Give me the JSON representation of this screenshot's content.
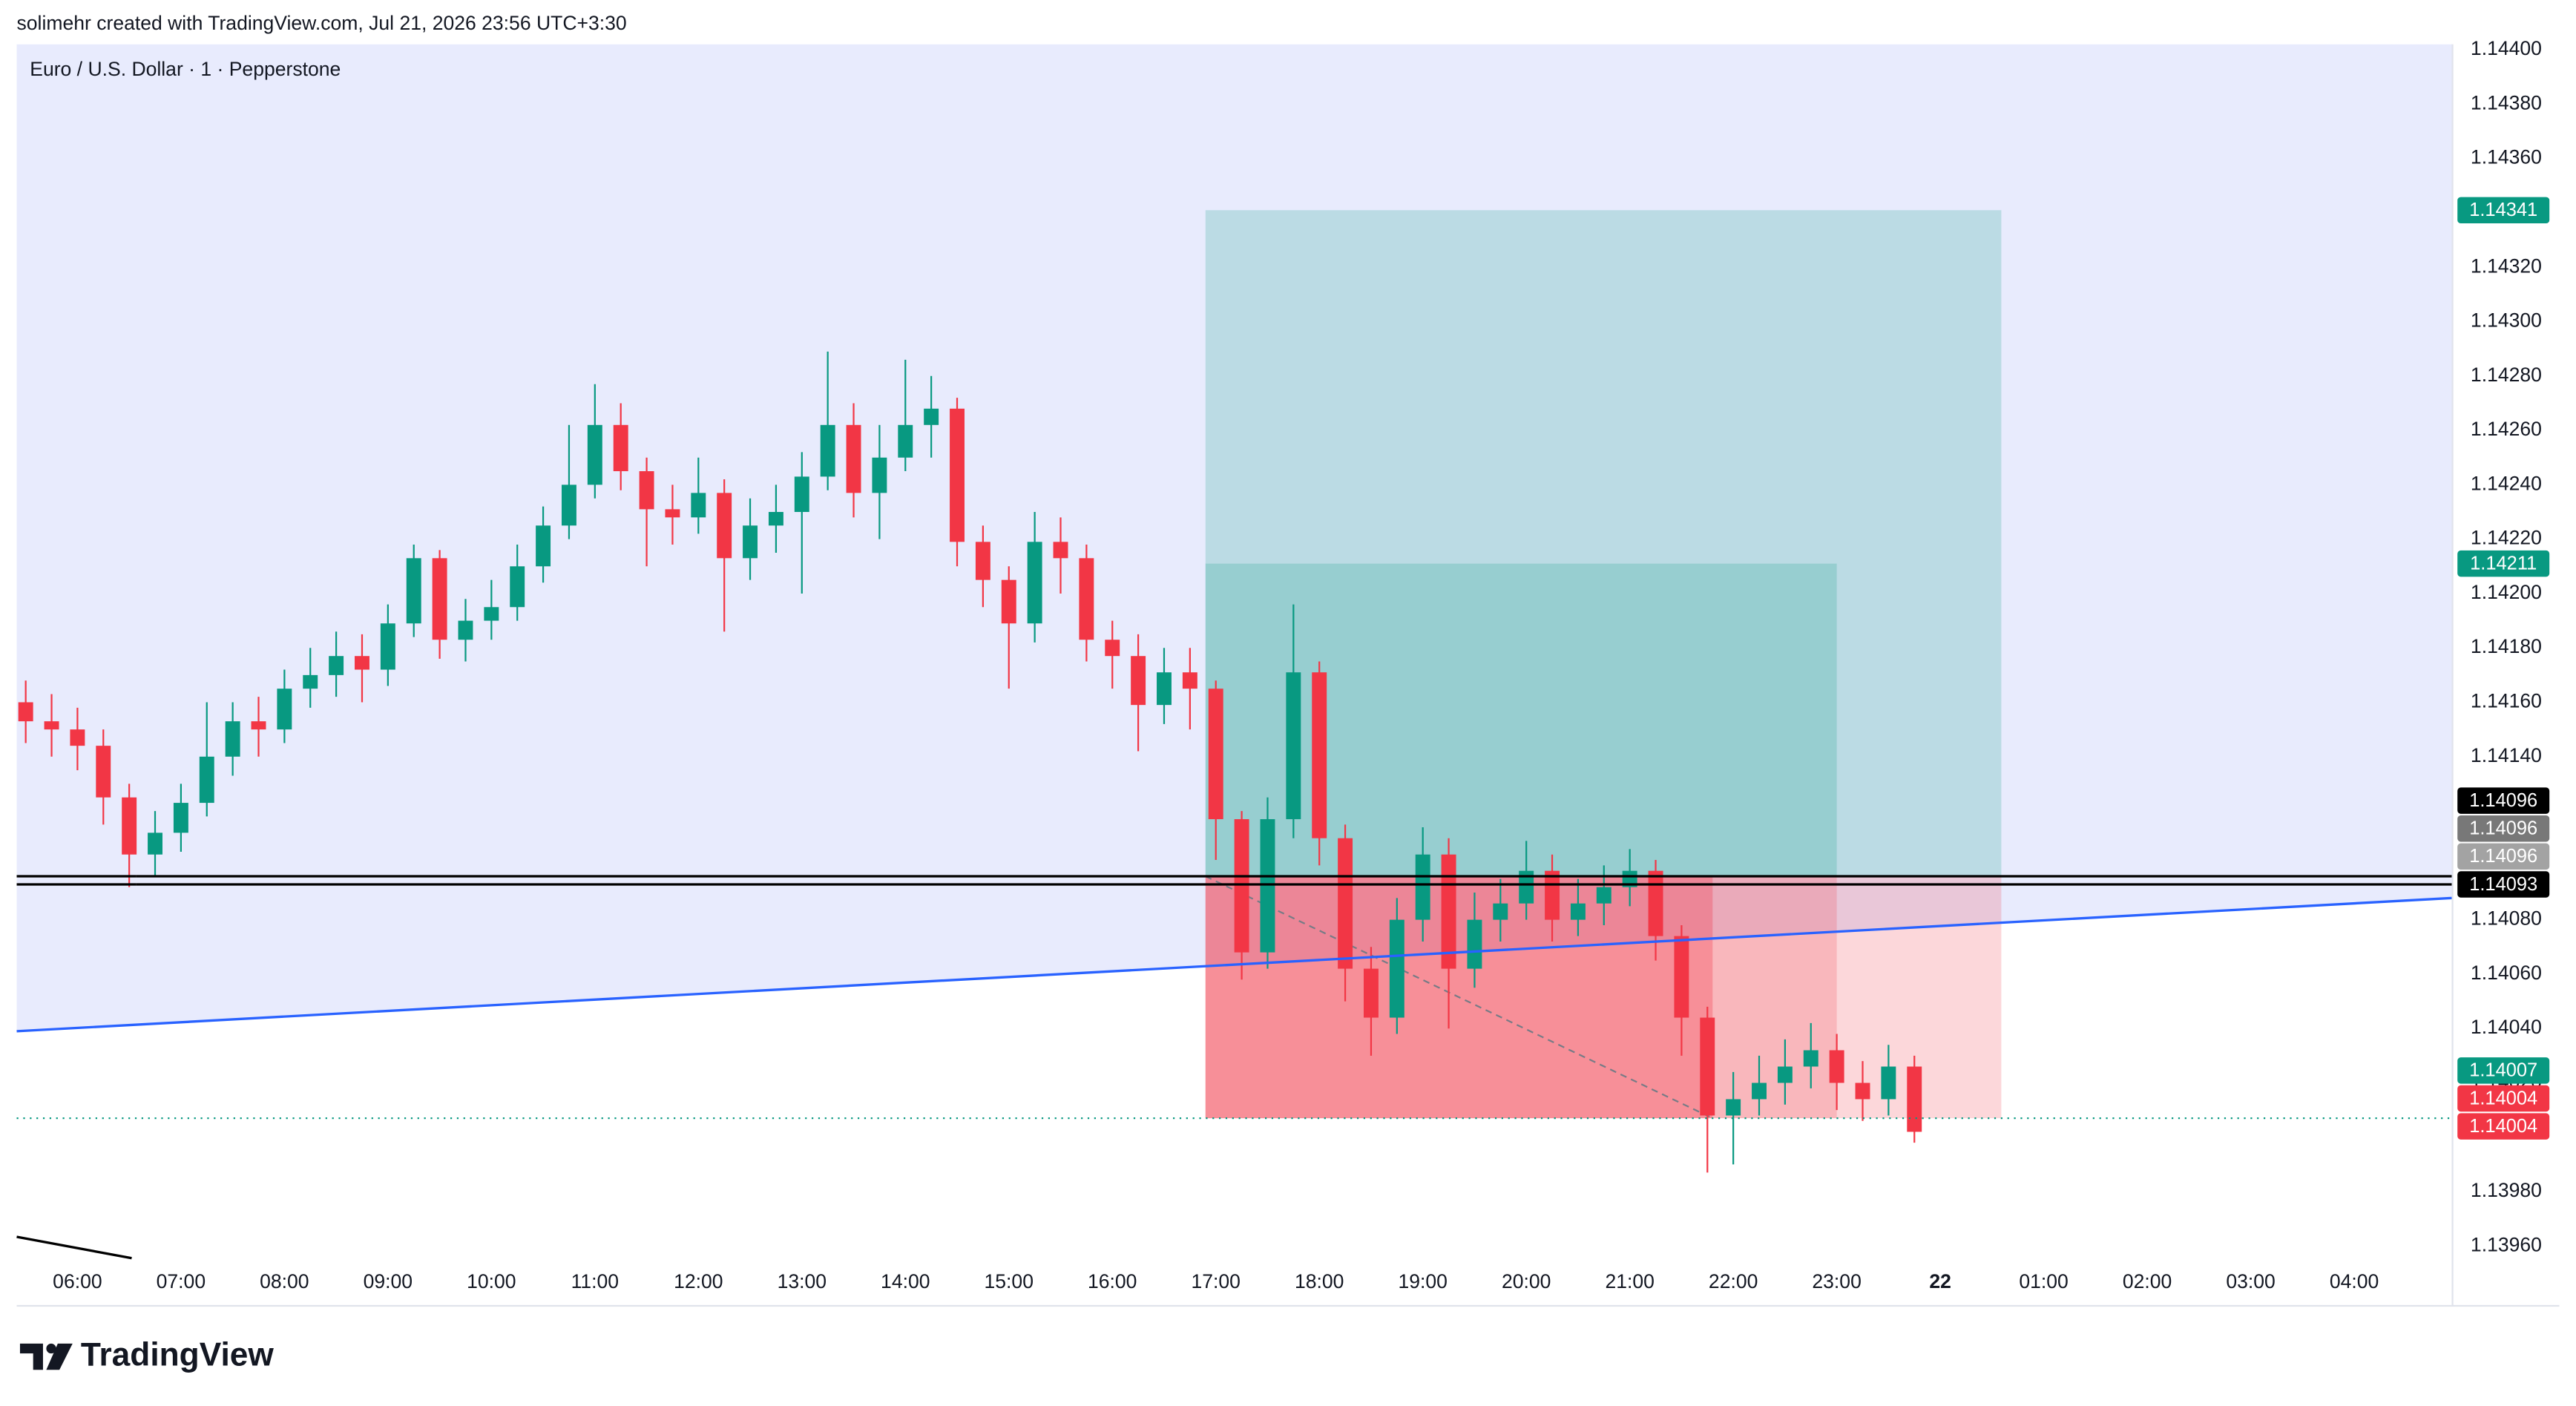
{
  "header": {
    "attribution": "solimehr created with TradingView.com, Jul 21, 2026 23:56 UTC+3:30"
  },
  "chart_data": {
    "type": "candlestick",
    "title": "Euro / U.S. Dollar · 1 · Pepperstone",
    "x": [
      5.5,
      5.75,
      6,
      6.25,
      6.5,
      6.75,
      7,
      7.25,
      7.5,
      7.75,
      8,
      8.25,
      8.5,
      8.75,
      9,
      9.25,
      9.5,
      9.75,
      10,
      10.25,
      10.5,
      10.75,
      11,
      11.25,
      11.5,
      11.75,
      12,
      12.25,
      12.5,
      12.75,
      13,
      13.25,
      13.5,
      13.75,
      14,
      14.25,
      14.5,
      14.75,
      15,
      15.25,
      15.5,
      15.75,
      16,
      16.25,
      16.5,
      16.75,
      17,
      17.25,
      17.5,
      17.75,
      18,
      18.25,
      18.5,
      18.75,
      19,
      19.25,
      19.5,
      19.75,
      20,
      20.25,
      20.5,
      20.75,
      21,
      21.25,
      21.5,
      21.75,
      22,
      22.25,
      22.5,
      22.75,
      23,
      23.25,
      23.5,
      23.75
    ],
    "open": [
      1.1416,
      1.14153,
      1.1415,
      1.14144,
      1.14125,
      1.14104,
      1.14112,
      1.14123,
      1.1414,
      1.14153,
      1.1415,
      1.14165,
      1.1417,
      1.14177,
      1.14172,
      1.14189,
      1.14213,
      1.14183,
      1.1419,
      1.14195,
      1.1421,
      1.14225,
      1.1424,
      1.14262,
      1.14245,
      1.14231,
      1.14228,
      1.14237,
      1.14213,
      1.14225,
      1.1423,
      1.14243,
      1.14262,
      1.14237,
      1.1425,
      1.14262,
      1.14268,
      1.14219,
      1.14205,
      1.14189,
      1.14219,
      1.14213,
      1.14183,
      1.14177,
      1.14159,
      1.14171,
      1.14165,
      1.14117,
      1.14068,
      1.14117,
      1.14171,
      1.1411,
      1.14062,
      1.14044,
      1.1408,
      1.14104,
      1.14062,
      1.1408,
      1.14086,
      1.14098,
      1.1408,
      1.14086,
      1.14092,
      1.14098,
      1.14074,
      1.14044,
      1.14008,
      1.14014,
      1.1402,
      1.14026,
      1.14032,
      1.1402,
      1.14014,
      1.14026
    ],
    "high": [
      1.14168,
      1.14163,
      1.14158,
      1.1415,
      1.1413,
      1.1412,
      1.1413,
      1.1416,
      1.1416,
      1.14162,
      1.14172,
      1.1418,
      1.14186,
      1.14185,
      1.14196,
      1.14218,
      1.14216,
      1.14198,
      1.14205,
      1.14218,
      1.14232,
      1.14262,
      1.14277,
      1.1427,
      1.1425,
      1.1424,
      1.1425,
      1.14242,
      1.14235,
      1.1424,
      1.14252,
      1.14289,
      1.1427,
      1.14262,
      1.14286,
      1.1428,
      1.14272,
      1.14225,
      1.1421,
      1.1423,
      1.14228,
      1.14218,
      1.1419,
      1.14185,
      1.1418,
      1.1418,
      1.14168,
      1.1412,
      1.14125,
      1.14196,
      1.14175,
      1.14115,
      1.1407,
      1.14088,
      1.14114,
      1.1411,
      1.1409,
      1.14095,
      1.14109,
      1.14104,
      1.14095,
      1.141,
      1.14106,
      1.14102,
      1.14078,
      1.14048,
      1.14024,
      1.1403,
      1.14036,
      1.14042,
      1.14038,
      1.14028,
      1.14034,
      1.1403
    ],
    "low": [
      1.14145,
      1.1414,
      1.14135,
      1.14115,
      1.14092,
      1.14096,
      1.14105,
      1.14118,
      1.14133,
      1.1414,
      1.14145,
      1.14158,
      1.14162,
      1.1416,
      1.14166,
      1.14184,
      1.14176,
      1.14175,
      1.14183,
      1.1419,
      1.14204,
      1.1422,
      1.14235,
      1.14238,
      1.1421,
      1.14218,
      1.14222,
      1.14186,
      1.14205,
      1.14215,
      1.142,
      1.14238,
      1.14228,
      1.1422,
      1.14245,
      1.1425,
      1.1421,
      1.14195,
      1.14165,
      1.14182,
      1.142,
      1.14175,
      1.14165,
      1.14142,
      1.14152,
      1.1415,
      1.14102,
      1.14058,
      1.14062,
      1.1411,
      1.141,
      1.1405,
      1.1403,
      1.14038,
      1.14072,
      1.1404,
      1.14055,
      1.14072,
      1.1408,
      1.14072,
      1.14074,
      1.14078,
      1.14085,
      1.14065,
      1.1403,
      1.13987,
      1.1399,
      1.14008,
      1.14012,
      1.14018,
      1.1401,
      1.14006,
      1.14008,
      1.13998
    ],
    "close": [
      1.14153,
      1.1415,
      1.14144,
      1.14125,
      1.14104,
      1.14112,
      1.14123,
      1.1414,
      1.14153,
      1.1415,
      1.14165,
      1.1417,
      1.14177,
      1.14172,
      1.14189,
      1.14213,
      1.14183,
      1.1419,
      1.14195,
      1.1421,
      1.14225,
      1.1424,
      1.14262,
      1.14245,
      1.14231,
      1.14228,
      1.14237,
      1.14213,
      1.14225,
      1.1423,
      1.14243,
      1.14262,
      1.14237,
      1.1425,
      1.14262,
      1.14268,
      1.14219,
      1.14205,
      1.14189,
      1.14219,
      1.14213,
      1.14183,
      1.14177,
      1.14159,
      1.14171,
      1.14165,
      1.14117,
      1.14068,
      1.14117,
      1.14171,
      1.1411,
      1.14062,
      1.14044,
      1.1408,
      1.14104,
      1.14062,
      1.1408,
      1.14086,
      1.14098,
      1.1408,
      1.14086,
      1.14092,
      1.14098,
      1.14074,
      1.14044,
      1.14008,
      1.14014,
      1.1402,
      1.14026,
      1.14032,
      1.1402,
      1.14014,
      1.14026,
      1.14002
    ],
    "up_color": "#089981",
    "down_color": "#f23645",
    "xlim": [
      5.413,
      28.95
    ],
    "xticks": [
      {
        "value": 6,
        "label": "06:00"
      },
      {
        "value": 7,
        "label": "07:00"
      },
      {
        "value": 8,
        "label": "08:00"
      },
      {
        "value": 9,
        "label": "09:00"
      },
      {
        "value": 10,
        "label": "10:00"
      },
      {
        "value": 11,
        "label": "11:00"
      },
      {
        "value": 12,
        "label": "12:00"
      },
      {
        "value": 13,
        "label": "13:00"
      },
      {
        "value": 14,
        "label": "14:00"
      },
      {
        "value": 15,
        "label": "15:00"
      },
      {
        "value": 16,
        "label": "16:00"
      },
      {
        "value": 17,
        "label": "17:00"
      },
      {
        "value": 18,
        "label": "18:00"
      },
      {
        "value": 19,
        "label": "19:00"
      },
      {
        "value": 20,
        "label": "20:00"
      },
      {
        "value": 21,
        "label": "21:00"
      },
      {
        "value": 22,
        "label": "22:00"
      },
      {
        "value": 23,
        "label": "23:00"
      },
      {
        "value": 24,
        "label": "22"
      },
      {
        "value": 25,
        "label": "01:00"
      },
      {
        "value": 26,
        "label": "02:00"
      },
      {
        "value": 27,
        "label": "03:00"
      },
      {
        "value": 28,
        "label": "04:00"
      }
    ],
    "ylim": [
      1.13938,
      1.14402
    ],
    "yticks": [
      {
        "value": 1.144,
        "label": "1.14400"
      },
      {
        "value": 1.1438,
        "label": "1.14380"
      },
      {
        "value": 1.1436,
        "label": "1.14360"
      },
      {
        "value": 1.1432,
        "label": "1.14320"
      },
      {
        "value": 1.143,
        "label": "1.14300"
      },
      {
        "value": 1.1428,
        "label": "1.14280"
      },
      {
        "value": 1.1426,
        "label": "1.14260"
      },
      {
        "value": 1.1424,
        "label": "1.14240"
      },
      {
        "value": 1.1422,
        "label": "1.14220"
      },
      {
        "value": 1.142,
        "label": "1.14200"
      },
      {
        "value": 1.1418,
        "label": "1.14180"
      },
      {
        "value": 1.1416,
        "label": "1.14160"
      },
      {
        "value": 1.1414,
        "label": "1.14140"
      },
      {
        "value": 1.1408,
        "label": "1.14080"
      },
      {
        "value": 1.1406,
        "label": "1.14060"
      },
      {
        "value": 1.1404,
        "label": "1.14040"
      },
      {
        "value": 1.1402,
        "label": "1.14020"
      },
      {
        "value": 1.1398,
        "label": "1.13980"
      },
      {
        "value": 1.1396,
        "label": "1.13960"
      }
    ],
    "drawings": {
      "region_color": "#e8ebfd",
      "trend_line": {
        "x": [
          5.413,
          28.95
        ],
        "y": [
          1.14039,
          1.14088
        ],
        "color": "#2962ff"
      },
      "horizontal_lines": [
        {
          "x": 6.57,
          "y": 1.14096,
          "color": "#000000"
        },
        {
          "x": 6.57,
          "y": 1.14093,
          "color": "#000000"
        }
      ],
      "position": {
        "start": 16.9,
        "end": 24.59,
        "entry": 1.14096,
        "target": 1.14341,
        "stop": 1.14007,
        "profit_color": "#089981",
        "loss_color": "#f23645"
      },
      "trade": {
        "stop_hit": 21.8,
        "end": 23.0,
        "max_price": 1.14211
      }
    },
    "price_labels": [
      {
        "value": 1.14341,
        "color": "#089981"
      },
      {
        "value": 1.14211,
        "color": "#089981"
      },
      {
        "value": 1.14096,
        "color": "#000000"
      },
      {
        "value": 1.14096,
        "color": "#787878"
      },
      {
        "value": 1.14096,
        "color": "#a3a3a3"
      },
      {
        "value": 1.14093,
        "color": "#000000"
      },
      {
        "value": 1.14007,
        "color": "#089981"
      },
      {
        "value": 1.14004,
        "color": "#f23645"
      },
      {
        "value": 1.14004,
        "color": "#f23645"
      }
    ]
  },
  "footer": {
    "logo": "TradingView"
  }
}
